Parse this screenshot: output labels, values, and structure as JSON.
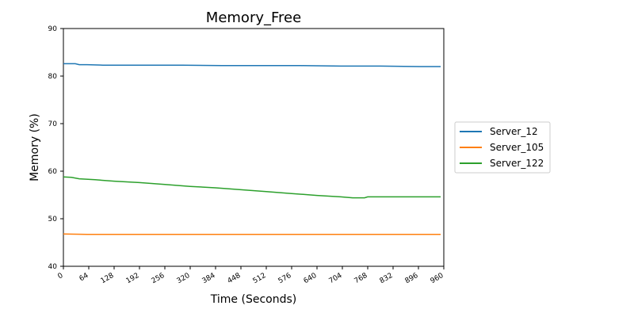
{
  "chart_data": {
    "type": "line",
    "title": "Memory_Free",
    "xlabel": "Time (Seconds)",
    "ylabel": "Memory (%)",
    "xlim": [
      0,
      960
    ],
    "ylim": [
      40,
      90
    ],
    "xticks": [
      0,
      64,
      128,
      192,
      256,
      320,
      384,
      448,
      512,
      576,
      640,
      704,
      768,
      832,
      896,
      960
    ],
    "yticks": [
      40,
      50,
      60,
      70,
      80,
      90
    ],
    "grid": false,
    "legend_position": "right",
    "series": [
      {
        "name": "Server_12",
        "color": "#1f77b4",
        "x": [
          0,
          30,
          40,
          60,
          100,
          200,
          300,
          400,
          500,
          600,
          700,
          800,
          900,
          952
        ],
        "y": [
          82.6,
          82.6,
          82.4,
          82.4,
          82.3,
          82.3,
          82.3,
          82.2,
          82.2,
          82.2,
          82.1,
          82.1,
          82.0,
          82.0
        ]
      },
      {
        "name": "Server_105",
        "color": "#ff7f0e",
        "x": [
          0,
          60,
          200,
          400,
          600,
          800,
          952
        ],
        "y": [
          46.8,
          46.7,
          46.7,
          46.7,
          46.7,
          46.7,
          46.7
        ]
      },
      {
        "name": "Server_122",
        "color": "#2ca02c",
        "x": [
          0,
          20,
          40,
          80,
          128,
          192,
          256,
          320,
          384,
          448,
          512,
          576,
          640,
          700,
          730,
          760,
          768,
          800,
          900,
          952
        ],
        "y": [
          58.8,
          58.7,
          58.4,
          58.2,
          57.9,
          57.6,
          57.2,
          56.8,
          56.5,
          56.1,
          55.7,
          55.3,
          54.9,
          54.6,
          54.4,
          54.4,
          54.6,
          54.6,
          54.6,
          54.6
        ]
      }
    ]
  }
}
